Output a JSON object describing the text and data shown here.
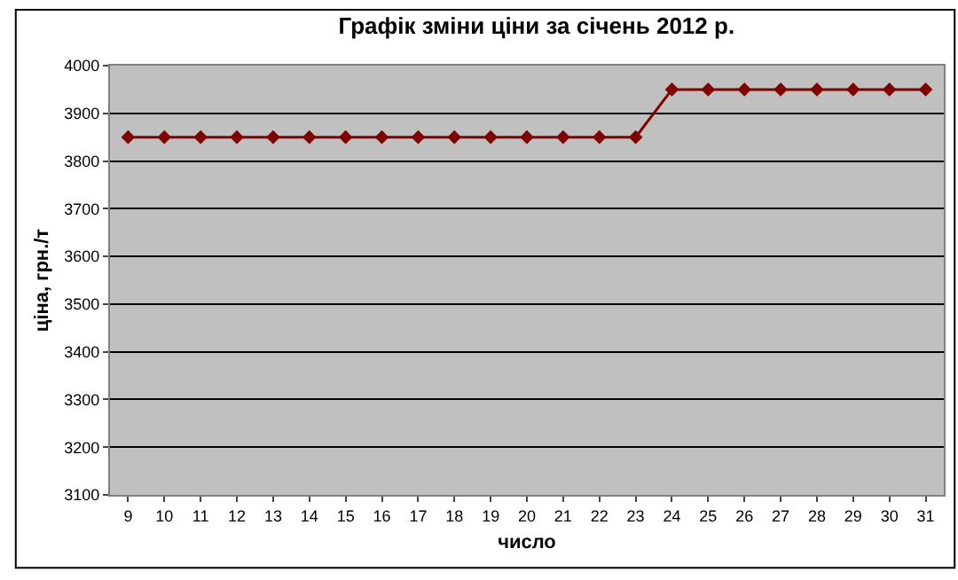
{
  "chart_data": {
    "type": "line",
    "title": "Графік зміни ціни за січень 2012 р.",
    "xlabel": "число",
    "ylabel": "ціна, грн./т",
    "categories": [
      "9",
      "10",
      "11",
      "12",
      "13",
      "14",
      "15",
      "16",
      "17",
      "18",
      "19",
      "20",
      "21",
      "22",
      "23",
      "24",
      "25",
      "26",
      "27",
      "28",
      "29",
      "30",
      "31"
    ],
    "series": [
      {
        "color": "#800000",
        "values": [
          3850,
          3850,
          3850,
          3850,
          3850,
          3850,
          3850,
          3850,
          3850,
          3850,
          3850,
          3850,
          3850,
          3850,
          3850,
          3950,
          3950,
          3950,
          3950,
          3950,
          3950,
          3950,
          3950
        ]
      }
    ],
    "ylim": [
      3100,
      4000
    ],
    "yticks": [
      3100,
      3200,
      3300,
      3400,
      3500,
      3600,
      3700,
      3800,
      3900,
      4000
    ],
    "grid": "y",
    "marker": "diamond",
    "line_style": "solid"
  }
}
